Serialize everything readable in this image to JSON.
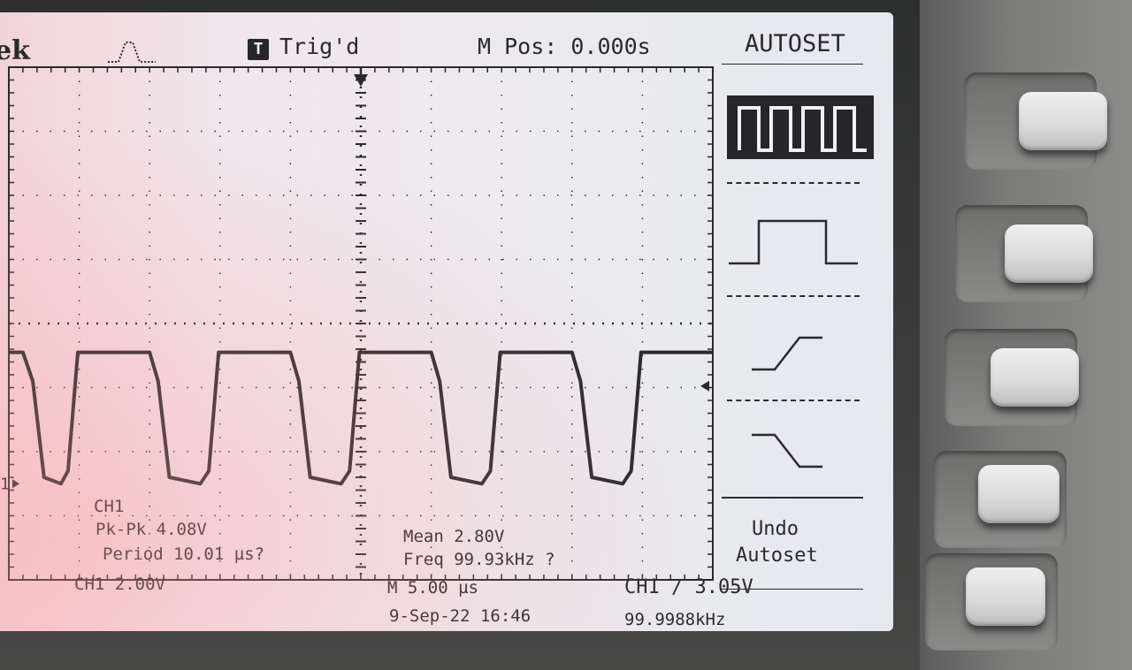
{
  "header": {
    "brand": "ek",
    "trigger_badge": "T",
    "trigger_status": "Trig'd",
    "m_pos": "M Pos: 0.000s"
  },
  "side_menu": {
    "title": "AUTOSET",
    "options": [
      "multi-cycle-square-wave-icon",
      "single-cycle-square-wave-icon",
      "rising-edge-icon",
      "falling-edge-icon"
    ],
    "undo_line1": "Undo",
    "undo_line2": "Autoset"
  },
  "measurements": {
    "channel": "CH1",
    "pk_pk": "Pk-Pk 4.08V",
    "period": "Period 10.01 µs?",
    "mean": "Mean 2.80V",
    "freq": "Freq 99.93kHz ?"
  },
  "status_bar": {
    "ch1_scale": "CH1  2.00V",
    "timebase": "M 5.00 µs",
    "trigger": "CH1 ∕ 3.05V",
    "datetime": "9-Sep-22 16:46",
    "trigger_freq": "99.9988kHz"
  },
  "graticule": {
    "channel_marker": "1",
    "divisions_x": 10,
    "divisions_y": 8,
    "volts_per_div": 2.0,
    "time_per_div_us": 5.0
  },
  "chart_data": {
    "type": "line",
    "title": "",
    "xlabel": "",
    "ylabel": "",
    "x_unit": "us",
    "y_unit": "V",
    "xlim": [
      -25,
      25
    ],
    "ylim": [
      -3,
      13
    ],
    "series": [
      {
        "name": "CH1",
        "x": [
          -25,
          -24,
          -23.3,
          -22.5,
          -21.3,
          -20.8,
          -20.1,
          -15,
          -14.4,
          -13.6,
          -11.4,
          -10.8,
          -10.1,
          -5,
          -4.4,
          -3.6,
          -1.4,
          -0.8,
          -0.1,
          5,
          5.6,
          6.4,
          8.6,
          9.2,
          9.9,
          15,
          15.6,
          16.4,
          18.6,
          19.2,
          19.9,
          25
        ],
        "y": [
          4.1,
          4.1,
          3.2,
          0.2,
          0.0,
          0.4,
          4.1,
          4.1,
          3.2,
          0.2,
          0.0,
          0.4,
          4.1,
          4.1,
          3.2,
          0.2,
          0.0,
          0.4,
          4.1,
          4.1,
          3.2,
          0.2,
          0.0,
          0.4,
          4.1,
          4.1,
          3.2,
          0.2,
          0.0,
          0.4,
          4.1,
          4.1
        ]
      }
    ]
  }
}
